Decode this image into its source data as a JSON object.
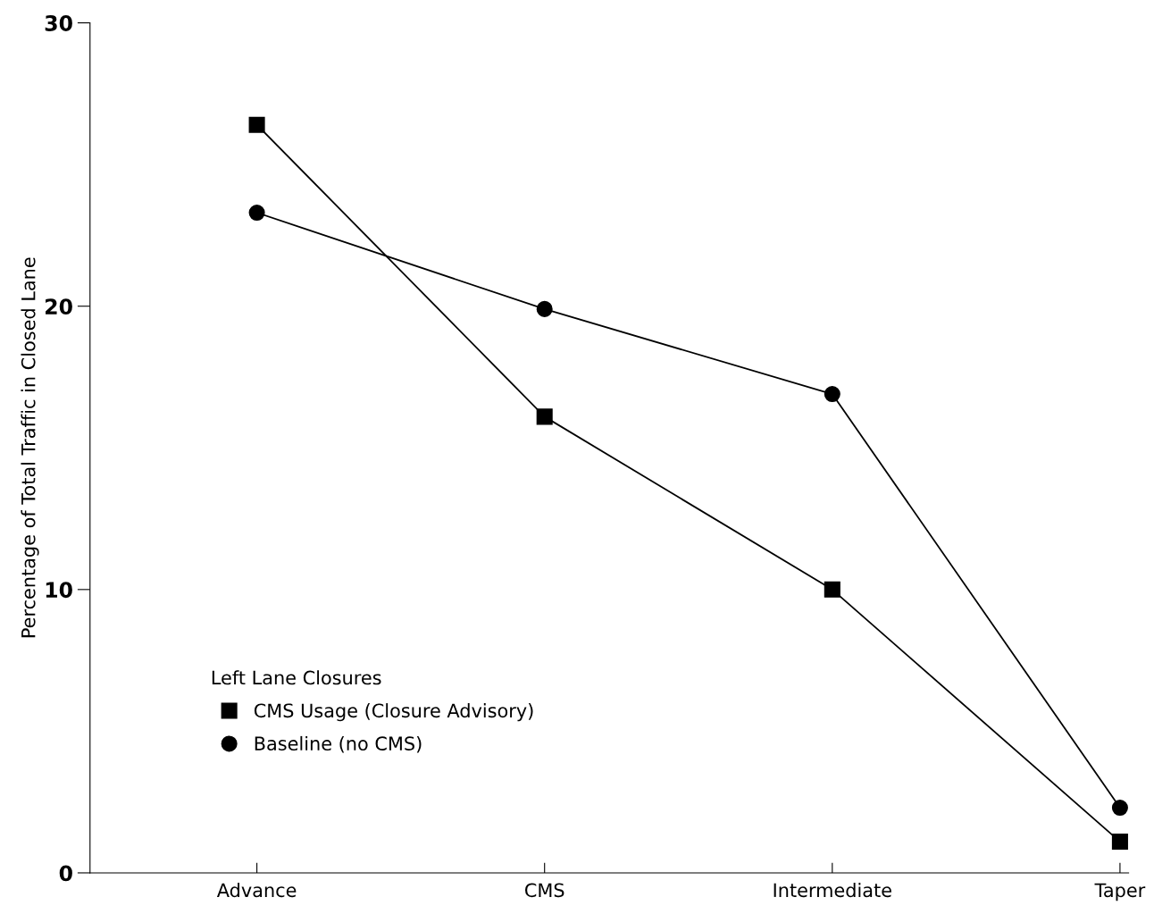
{
  "chart_data": {
    "type": "line",
    "ylabel": "Percentage of Total Traffic in Closed Lane",
    "categories": [
      "Advance",
      "CMS",
      "Intermediate",
      "Taper"
    ],
    "series": [
      {
        "name": "CMS Usage (Closure Advisory)",
        "color": "#000000",
        "marker": "square",
        "values": [
          26.4,
          16.1,
          10.0,
          1.1
        ]
      },
      {
        "name": "Baseline (no CMS)",
        "color": "#000000",
        "marker": "circle",
        "values": [
          23.3,
          19.9,
          16.9,
          2.3
        ]
      }
    ],
    "legend_title": "Left Lane Closures",
    "legend": "bottom left",
    "ylim": [
      0,
      30
    ],
    "yticks": [
      0,
      10,
      20,
      30
    ],
    "grid": false,
    "line_style": "solid"
  }
}
